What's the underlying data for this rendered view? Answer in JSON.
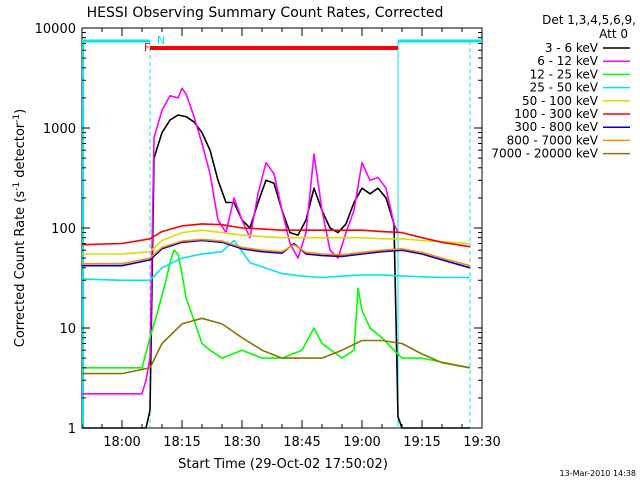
{
  "chart_data": {
    "type": "line",
    "title": "HESSI Observing Summary Count Rates, Corrected",
    "xlabel": "Start Time (29-Oct-02 17:50:02)",
    "ylabel": "Corrected Count Rate (s",
    "ylabel_sup": "-1",
    "ylabel_tail": " detector",
    "ylabel_end": ")",
    "yscale": "log",
    "xlim": [
      "17:50",
      "19:30"
    ],
    "ylim": [
      1,
      10000
    ],
    "x_ticks": [
      "18:00",
      "18:15",
      "18:30",
      "18:45",
      "19:00",
      "19:15",
      "19:30"
    ],
    "y_ticks": [
      "1",
      "10",
      "100",
      "1000",
      "10000"
    ],
    "legend_header": [
      "Det 1,3,4,5,6,9,",
      "Att 0"
    ],
    "legend_position": "right",
    "annotations": {
      "flare_flag": "F",
      "night_flag": "N",
      "footer_date": "13-Mar-2010 14:38"
    },
    "markers": {
      "night_start": "18:07",
      "night_end": "19:09",
      "day_end": "19:27",
      "flare_start": "18:07",
      "flare_end": "19:09"
    },
    "series": [
      {
        "name": "3 - 6 keV",
        "color": "#000000",
        "x": [
          "17:50",
          "18:06",
          "18:07",
          "18:08",
          "18:10",
          "18:12",
          "18:14",
          "18:16",
          "18:18",
          "18:20",
          "18:22",
          "18:24",
          "18:26",
          "18:28",
          "18:30",
          "18:32",
          "18:34",
          "18:36",
          "18:38",
          "18:40",
          "18:42",
          "18:44",
          "18:46",
          "18:48",
          "18:50",
          "18:52",
          "18:54",
          "18:56",
          "18:58",
          "19:00",
          "19:02",
          "19:04",
          "19:06",
          "19:08",
          "19:09",
          "19:10",
          "19:15",
          "19:27"
        ],
        "y": [
          1,
          1,
          1.5,
          500,
          900,
          1200,
          1350,
          1300,
          1150,
          900,
          600,
          300,
          180,
          180,
          120,
          100,
          180,
          300,
          280,
          150,
          90,
          85,
          120,
          250,
          150,
          100,
          90,
          110,
          180,
          250,
          220,
          250,
          200,
          110,
          1.3,
          1,
          1,
          1
        ]
      },
      {
        "name": "6 - 12 keV",
        "color": "#ff00ff",
        "x": [
          "17:50",
          "18:05",
          "18:06",
          "18:07",
          "18:08",
          "18:10",
          "18:12",
          "18:14",
          "18:15",
          "18:16",
          "18:17",
          "18:18",
          "18:20",
          "18:22",
          "18:24",
          "18:26",
          "18:28",
          "18:30",
          "18:32",
          "18:34",
          "18:36",
          "18:38",
          "18:40",
          "18:42",
          "18:44",
          "18:46",
          "18:48",
          "18:50",
          "18:52",
          "18:54",
          "18:56",
          "18:58",
          "19:00",
          "19:02",
          "19:04",
          "19:06",
          "19:08",
          "19:09"
        ],
        "y": [
          2.2,
          2.2,
          3,
          5,
          800,
          1500,
          2100,
          2000,
          2500,
          2200,
          1700,
          1300,
          700,
          350,
          120,
          90,
          200,
          120,
          80,
          220,
          450,
          350,
          150,
          70,
          50,
          90,
          550,
          150,
          60,
          50,
          90,
          150,
          450,
          300,
          320,
          250,
          110,
          90
        ]
      },
      {
        "name": "12 - 25 keV",
        "color": "#00ff00",
        "x": [
          "17:50",
          "18:05",
          "18:07",
          "18:09",
          "18:11",
          "18:12",
          "18:13",
          "18:14",
          "18:15",
          "18:16",
          "18:18",
          "18:20",
          "18:22",
          "18:25",
          "18:30",
          "18:35",
          "18:40",
          "18:45",
          "18:48",
          "18:50",
          "18:55",
          "18:58",
          "18:59",
          "19:00",
          "19:02",
          "19:05",
          "19:08",
          "19:10",
          "19:15",
          "19:27"
        ],
        "y": [
          4,
          4,
          8,
          15,
          30,
          45,
          60,
          55,
          35,
          20,
          12,
          7,
          6,
          5,
          6,
          5,
          5,
          6,
          10,
          7,
          5,
          6,
          25,
          15,
          10,
          8,
          6,
          5,
          5,
          4
        ]
      },
      {
        "name": "25 - 50 keV",
        "color": "#00e5ee",
        "x": [
          "17:50",
          "18:00",
          "18:07",
          "18:10",
          "18:15",
          "18:20",
          "18:25",
          "18:28",
          "18:32",
          "18:40",
          "18:45",
          "18:50",
          "18:55",
          "19:00",
          "19:05",
          "19:10",
          "19:20",
          "19:27"
        ],
        "y": [
          31,
          30,
          30,
          40,
          50,
          55,
          58,
          75,
          45,
          35,
          33,
          32,
          33,
          34,
          34,
          33,
          32,
          32
        ]
      },
      {
        "name": "50 - 100 keV",
        "color": "#dddd00",
        "x": [
          "17:50",
          "18:00",
          "18:07",
          "18:10",
          "18:15",
          "18:20",
          "18:25",
          "18:30",
          "18:35",
          "18:40",
          "18:45",
          "18:50",
          "18:55",
          "19:00",
          "19:05",
          "19:10",
          "19:15",
          "19:20",
          "19:27"
        ],
        "y": [
          55,
          55,
          58,
          75,
          90,
          95,
          90,
          85,
          82,
          80,
          80,
          80,
          80,
          80,
          78,
          78,
          75,
          73,
          70
        ]
      },
      {
        "name": "100 - 300 keV",
        "color": "#ff0000",
        "x": [
          "17:50",
          "18:00",
          "18:07",
          "18:10",
          "18:15",
          "18:20",
          "18:25",
          "18:30",
          "18:35",
          "18:40",
          "18:45",
          "18:50",
          "18:55",
          "19:00",
          "19:05",
          "19:10",
          "19:15",
          "19:20",
          "19:27"
        ],
        "y": [
          68,
          70,
          78,
          92,
          105,
          110,
          108,
          100,
          98,
          95,
          95,
          95,
          95,
          95,
          92,
          90,
          80,
          72,
          65
        ]
      },
      {
        "name": "300 - 800 keV",
        "color": "#0000cc",
        "x": [
          "17:50",
          "18:00",
          "18:07",
          "18:10",
          "18:15",
          "18:20",
          "18:25",
          "18:30",
          "18:35",
          "18:40",
          "18:43",
          "18:46",
          "18:50",
          "18:55",
          "19:00",
          "19:05",
          "19:10",
          "19:15",
          "19:20",
          "19:27"
        ],
        "y": [
          42,
          42,
          48,
          62,
          72,
          75,
          72,
          62,
          58,
          56,
          70,
          55,
          53,
          52,
          55,
          58,
          60,
          55,
          48,
          40
        ]
      },
      {
        "name": "800 - 7000 keV",
        "color": "#ff8c00",
        "x": [
          "17:50",
          "18:00",
          "18:07",
          "18:10",
          "18:15",
          "18:20",
          "18:25",
          "18:30",
          "18:35",
          "18:40",
          "18:43",
          "18:46",
          "18:50",
          "18:55",
          "19:00",
          "19:05",
          "19:10",
          "19:15",
          "19:20",
          "19:27"
        ],
        "y": [
          44,
          44,
          50,
          64,
          74,
          77,
          74,
          64,
          60,
          58,
          68,
          57,
          55,
          54,
          57,
          60,
          62,
          57,
          50,
          42
        ]
      },
      {
        "name": "7000 - 20000 keV",
        "color": "#8b7500",
        "x": [
          "17:50",
          "18:00",
          "18:07",
          "18:10",
          "18:15",
          "18:20",
          "18:25",
          "18:30",
          "18:35",
          "18:40",
          "18:45",
          "18:50",
          "18:55",
          "19:00",
          "19:05",
          "19:10",
          "19:15",
          "19:20",
          "19:27"
        ],
        "y": [
          3.5,
          3.5,
          4,
          7,
          11,
          12.5,
          11,
          8,
          6,
          5,
          5,
          5,
          6,
          7.5,
          7.5,
          7,
          5.5,
          4.5,
          4
        ]
      }
    ]
  }
}
